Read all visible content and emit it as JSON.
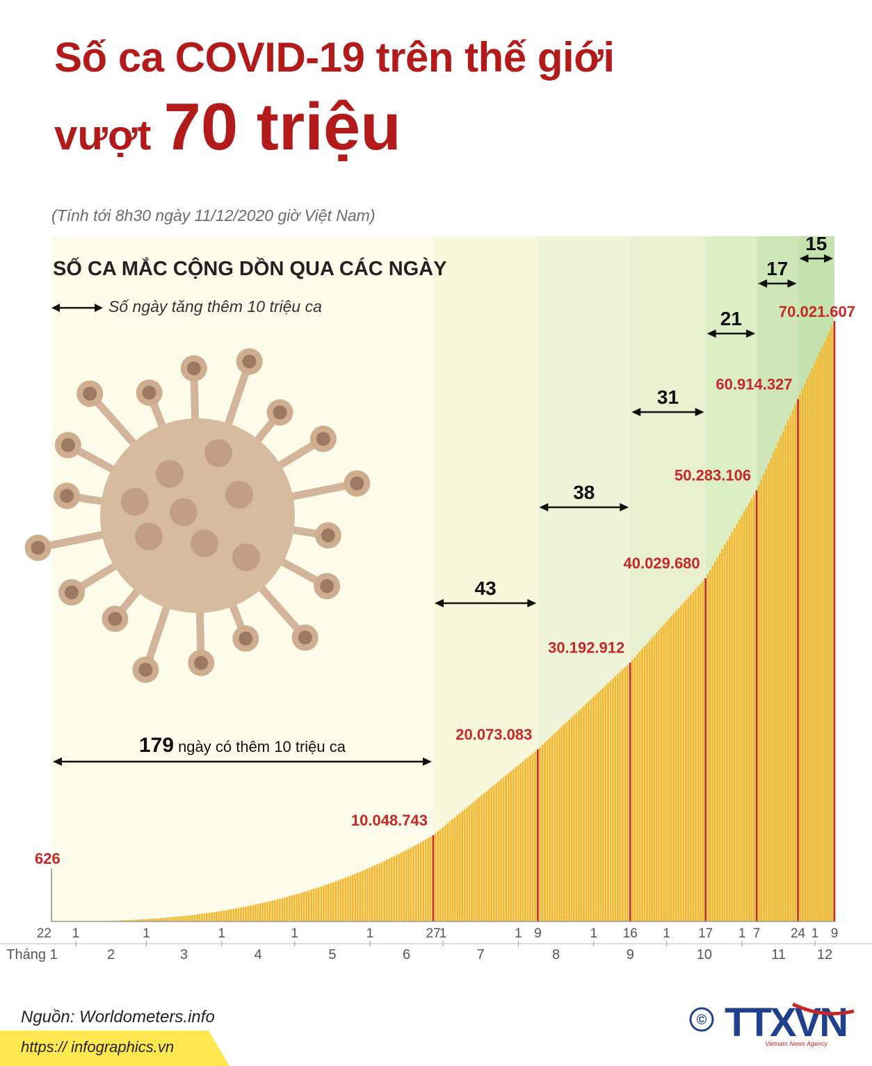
{
  "title": {
    "line1": "Số ca COVID-19 trên thế giới",
    "line2_prefix": "vượt",
    "line2_highlight": "70 triệu"
  },
  "subtitle": "(Tính tới 8h30 ngày 11/12/2020 giờ Việt Nam)",
  "chart_heading": "SỐ CA MẮC CỘNG DỒN QUA CÁC NGÀY",
  "legend_label": "Số ngày tăng thêm 10 triệu ca",
  "source": "Nguồn: Worldometers.info",
  "website": "https:// infographics.vn",
  "logo": {
    "text": "TTXVN",
    "subtext": "Vietnam News Agency",
    "copyright": "©"
  },
  "colors": {
    "title": "#b31b1b",
    "bar": "#f5b82e",
    "marker": "#c62828",
    "band_base": "#fdfbe9",
    "band_green": "#bfe0a8"
  },
  "chart_data": {
    "type": "area",
    "title": "SỐ CA MẮC CỘNG DỒN QUA CÁC NGÀY",
    "xlabel": "Tháng",
    "ylabel": "",
    "x_start": "2020-01-22",
    "x_end": "2020-12-09",
    "ylim": [
      0,
      70021607
    ],
    "month_label": "Tháng",
    "months": [
      "1",
      "2",
      "3",
      "4",
      "5",
      "6",
      "7",
      "8",
      "9",
      "10",
      "11",
      "12"
    ],
    "milestones": [
      {
        "date": "2020-01-22",
        "tick": "22",
        "value": 626,
        "label": "626"
      },
      {
        "date": "2020-06-27",
        "tick": "27",
        "value": 10048743,
        "label": "10.048.743"
      },
      {
        "date": "2020-08-09",
        "tick": "9",
        "value": 20073083,
        "label": "20.073.083"
      },
      {
        "date": "2020-09-16",
        "tick": "16",
        "value": 30192912,
        "label": "30.192.912"
      },
      {
        "date": "2020-10-17",
        "tick": "17",
        "value": 40029680,
        "label": "40.029.680"
      },
      {
        "date": "2020-11-07",
        "tick": "7",
        "value": 50283106,
        "label": "50.283.106"
      },
      {
        "date": "2020-11-24",
        "tick": "24",
        "value": 60914327,
        "label": "60.914.327"
      },
      {
        "date": "2020-12-09",
        "tick": "9",
        "value": 70021607,
        "label": "70.021.607"
      }
    ],
    "intervals": [
      {
        "days": 179,
        "label": "179",
        "text": "ngày có thêm 10 triệu ca"
      },
      {
        "days": 43,
        "label": "43"
      },
      {
        "days": 38,
        "label": "38"
      },
      {
        "days": 31,
        "label": "31"
      },
      {
        "days": 21,
        "label": "21"
      },
      {
        "days": 17,
        "label": "17"
      },
      {
        "days": 15,
        "label": "15"
      }
    ],
    "month_start_tick": "1"
  }
}
